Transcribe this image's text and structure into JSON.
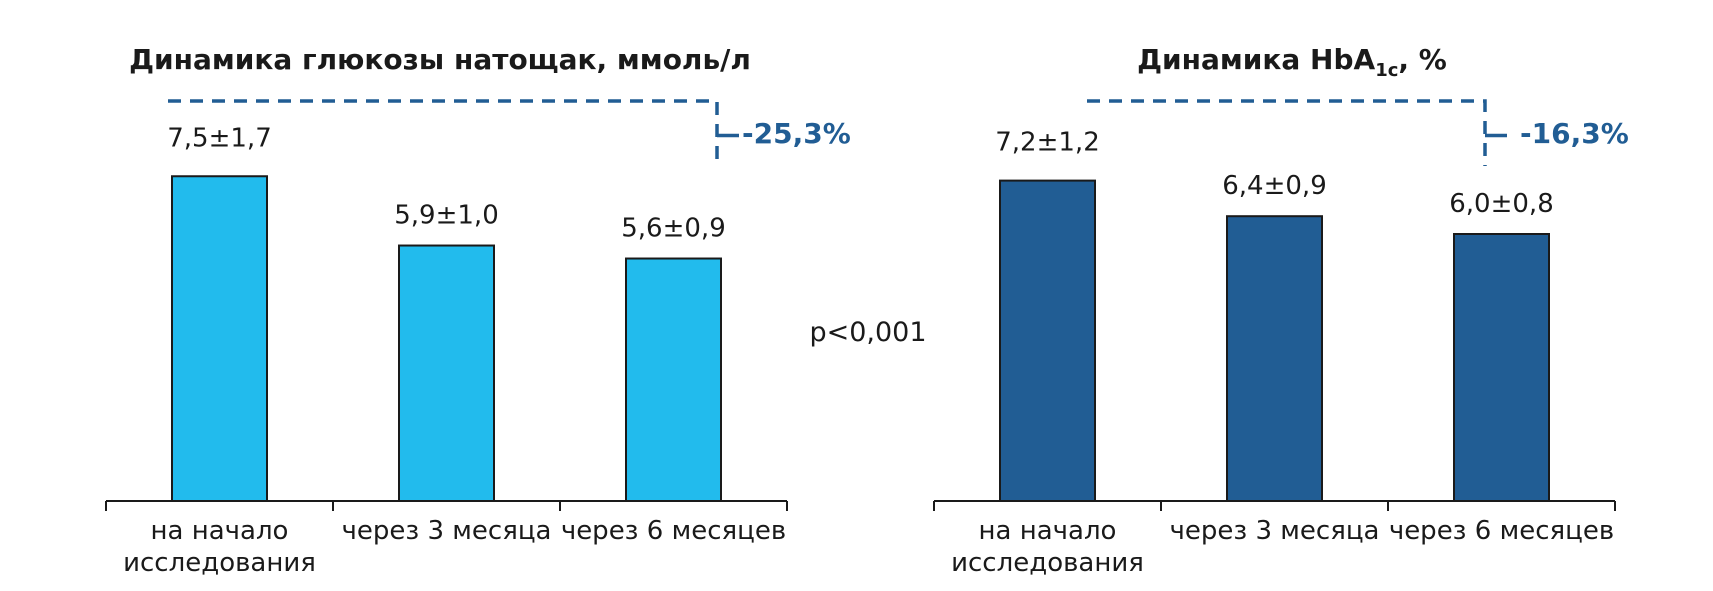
{
  "colors": {
    "bar_fasting": "#22bbed",
    "bar_hba1c": "#215d94",
    "bar_stroke": "#1a1a1a",
    "bracket": "#215d94",
    "axis": "#1a1a1a"
  },
  "p_value": "p<0,001",
  "chart_data": [
    {
      "type": "bar",
      "title": "Динамика глюкозы натощак, ммоль/л",
      "title_parts": {
        "main": "Динамика глюкозы натощак, ммоль/л",
        "sub": "",
        "tail": ""
      },
      "categories": [
        {
          "line1": "на начало",
          "line2": "исследования"
        },
        {
          "line1": "через 3 месяца",
          "line2": ""
        },
        {
          "line1": "через 6 месяцев",
          "line2": ""
        }
      ],
      "values": [
        7.5,
        5.9,
        5.6
      ],
      "errors": [
        1.7,
        1.0,
        0.9
      ],
      "data_labels": [
        "7,5±1,7",
        "5,9±1,0",
        "5,6±0,9"
      ],
      "change_label": "-25,3%",
      "ylim": [
        0,
        8.5
      ],
      "grid": false,
      "legend": "none"
    },
    {
      "type": "bar",
      "title": "Динамика HbA1c, %",
      "title_parts": {
        "main": "Динамика HbA",
        "sub": "1c",
        "tail": ", %"
      },
      "categories": [
        {
          "line1": "на начало",
          "line2": "исследования"
        },
        {
          "line1": "через 3 месяца",
          "line2": ""
        },
        {
          "line1": "через 6 месяцев",
          "line2": ""
        }
      ],
      "values": [
        7.2,
        6.4,
        6.0
      ],
      "errors": [
        1.2,
        0.9,
        0.8
      ],
      "data_labels": [
        "7,2±1,2",
        "6,4±0,9",
        "6,0±0,8"
      ],
      "change_label": "-16,3%",
      "ylim": [
        0,
        8.0
      ],
      "grid": false,
      "legend": "none"
    }
  ]
}
